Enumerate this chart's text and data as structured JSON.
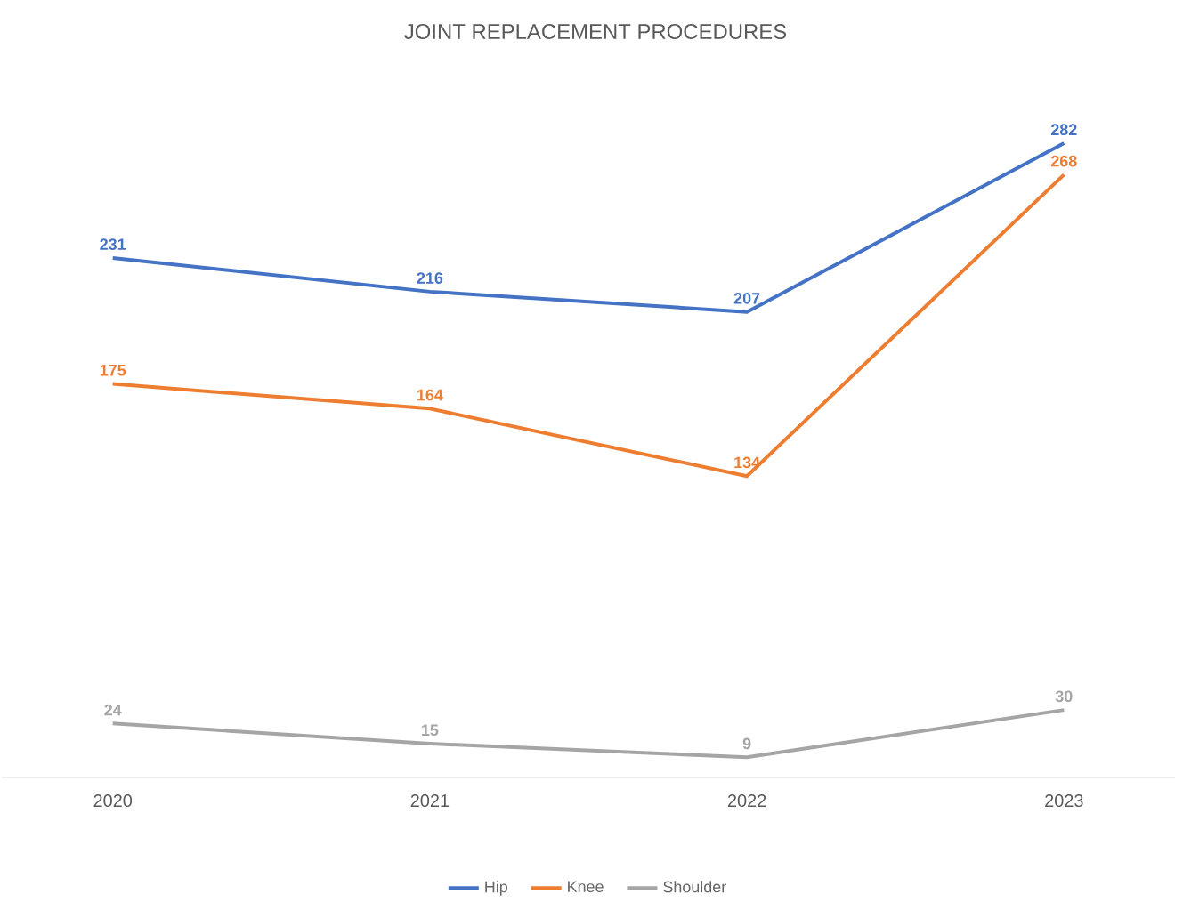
{
  "chart_data": {
    "type": "line",
    "title": "JOINT REPLACEMENT PROCEDURES",
    "categories": [
      "2020",
      "2021",
      "2022",
      "2023"
    ],
    "series": [
      {
        "name": "Hip",
        "color": "#4472c4",
        "values": [
          231,
          216,
          207,
          282
        ]
      },
      {
        "name": "Knee",
        "color": "#ed7d31",
        "values": [
          175,
          164,
          134,
          268
        ]
      },
      {
        "name": "Shoulder",
        "color": "#a5a5a5",
        "values": [
          24,
          15,
          9,
          30
        ]
      }
    ],
    "data_labels": true,
    "legend": "bottom",
    "grid": false,
    "marker": "none",
    "line_style": "solid"
  }
}
